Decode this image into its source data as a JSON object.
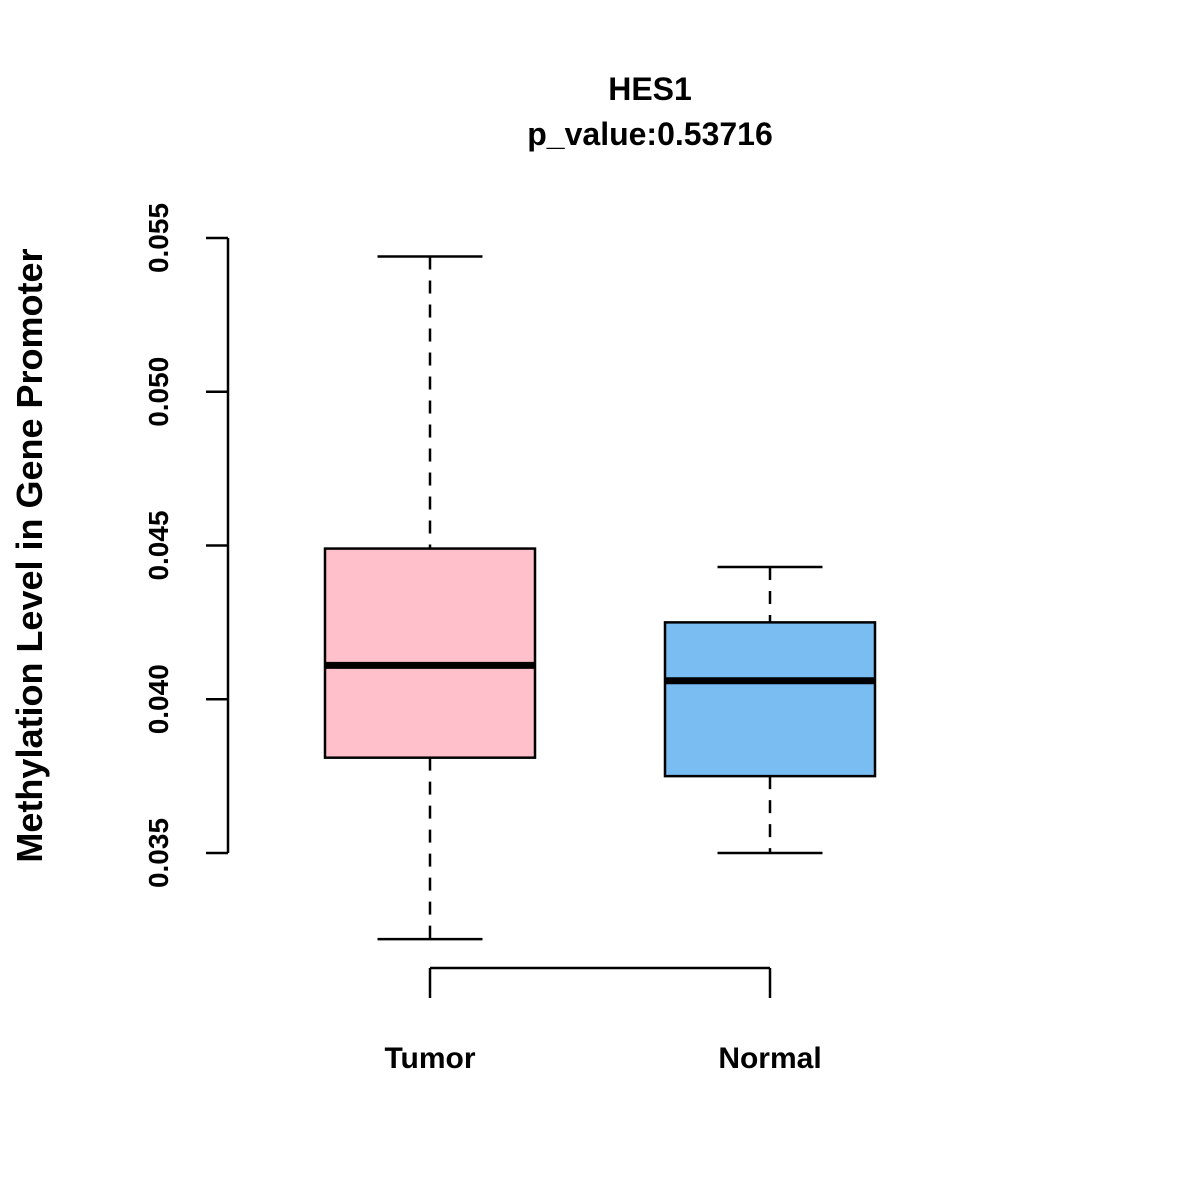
{
  "chart_data": {
    "type": "boxplot",
    "title": "HES1",
    "subtitle": "p_value:0.53716",
    "ylabel": "Methylation Level in Gene Promoter",
    "xlabel": "",
    "ylim": [
      0.035,
      0.055
    ],
    "yticks": [
      0.035,
      0.04,
      0.045,
      0.05,
      0.055
    ],
    "ytick_labels": [
      "0.035",
      "0.040",
      "0.045",
      "0.050",
      "0.055"
    ],
    "grid": false,
    "legend": null,
    "axis_color": "#000000",
    "groups": [
      {
        "label": "Tumor",
        "color": "#FFC0CB",
        "lower_whisker": 0.0322,
        "q1": 0.0381,
        "median": 0.0411,
        "q3": 0.0449,
        "upper_whisker": 0.0544
      },
      {
        "label": "Normal",
        "color": "#79BDF2",
        "lower_whisker": 0.035,
        "q1": 0.0375,
        "median": 0.0406,
        "q3": 0.0425,
        "upper_whisker": 0.0443
      }
    ]
  }
}
